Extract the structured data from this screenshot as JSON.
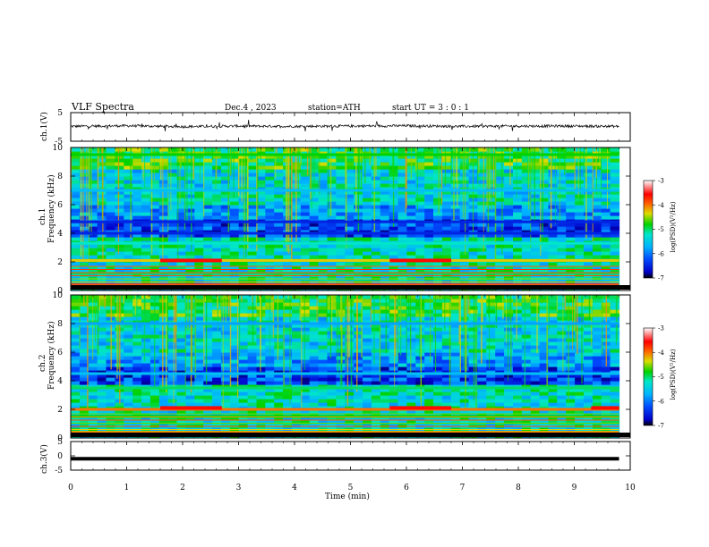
{
  "header": {
    "title": "VLF  Spectra",
    "date": "Dec.4  , 2023",
    "station": "station=ATH",
    "start": "start  UT  =    3  : 0   : 1"
  },
  "panels": {
    "ch1_wave_label": "ch.1(V)",
    "ch1_spec_label": "ch.1",
    "ch2_spec_label": "ch.2",
    "freq_label": "Frequency  (kHz)",
    "ch3_wave_label": "ch.3(V)"
  },
  "colorbar": {
    "label": "log(PSD)(V²/Hz)",
    "ticks": [
      "-3",
      "-4",
      "-5",
      "-6",
      "-7"
    ],
    "colors": [
      "#000000",
      "#0000c8",
      "#0050ff",
      "#00b4ff",
      "#00e6c8",
      "#00d200",
      "#dcdc00",
      "#ff6400",
      "#ff0000",
      "#ffffff"
    ]
  },
  "chart_data": [
    {
      "type": "line",
      "name": "ch1-waveform",
      "ylabel": "ch.1(V)",
      "ylim": [
        -5,
        5
      ],
      "y_ticks": [
        "5",
        "-5"
      ],
      "xlim": [
        0,
        10
      ],
      "note_values": "noisy trace centred near 0.3 V, spikes to about +/-2 V",
      "x": [
        0,
        1,
        2,
        3,
        4,
        5,
        6,
        7,
        8,
        9,
        9.8
      ],
      "y": [
        0.2,
        0.4,
        0.1,
        0.3,
        0.2,
        0.3,
        0.4,
        0.2,
        0.3,
        0.3,
        0.2
      ]
    },
    {
      "type": "heatmap",
      "name": "ch1-spectrogram",
      "ylabel": "Frequency  (kHz)",
      "ylim": [
        0,
        10
      ],
      "y_ticks": [
        "0",
        "2",
        "4",
        "6",
        "8",
        "10"
      ],
      "xlim": [
        0,
        10
      ],
      "colorbar_range": [
        -7,
        -3
      ],
      "bands_khz": [
        {
          "f": 0.4,
          "level": -3.5
        },
        {
          "f": 1.2,
          "level": -5.0
        },
        {
          "f": 2.1,
          "level": -4.3
        },
        {
          "f": 3.3,
          "level": -5.2
        },
        {
          "f": 4.0,
          "level": -6.5
        },
        {
          "f": 4.8,
          "level": -6.5
        },
        {
          "f": 7.0,
          "level": -5.6
        },
        {
          "f": 9.5,
          "level": -4.8
        }
      ],
      "events_min": [
        1.6,
        2.7,
        5.7,
        6.8
      ]
    },
    {
      "type": "heatmap",
      "name": "ch2-spectrogram",
      "ylabel": "Frequency  (kHz)",
      "ylim": [
        0,
        10
      ],
      "y_ticks": [
        "0",
        "2",
        "4",
        "6",
        "8",
        "10"
      ],
      "xlim": [
        0,
        10
      ],
      "colorbar_range": [
        -7,
        -3
      ],
      "bands_khz": [
        {
          "f": 0.4,
          "level": -4.2
        },
        {
          "f": 1.5,
          "level": -4.8
        },
        {
          "f": 2.0,
          "level": -4.0
        },
        {
          "f": 3.5,
          "level": -5.0
        },
        {
          "f": 4.5,
          "level": -5.6
        },
        {
          "f": 8.0,
          "level": -5.8
        }
      ],
      "events_min": [
        1.6,
        2.7,
        5.7,
        6.8,
        9.3
      ]
    },
    {
      "type": "line",
      "name": "ch3-waveform",
      "ylabel": "ch.3(V)",
      "ylim": [
        -5,
        5
      ],
      "y_ticks": [
        "5",
        "0",
        "-5"
      ],
      "xlim": [
        0,
        10
      ],
      "x": [
        0,
        9.8
      ],
      "y": [
        -1,
        -1
      ]
    }
  ],
  "xaxis": {
    "label": "Time  (min)",
    "ticks": [
      "0",
      "1",
      "2",
      "3",
      "4",
      "5",
      "6",
      "7",
      "8",
      "9",
      "10"
    ]
  }
}
